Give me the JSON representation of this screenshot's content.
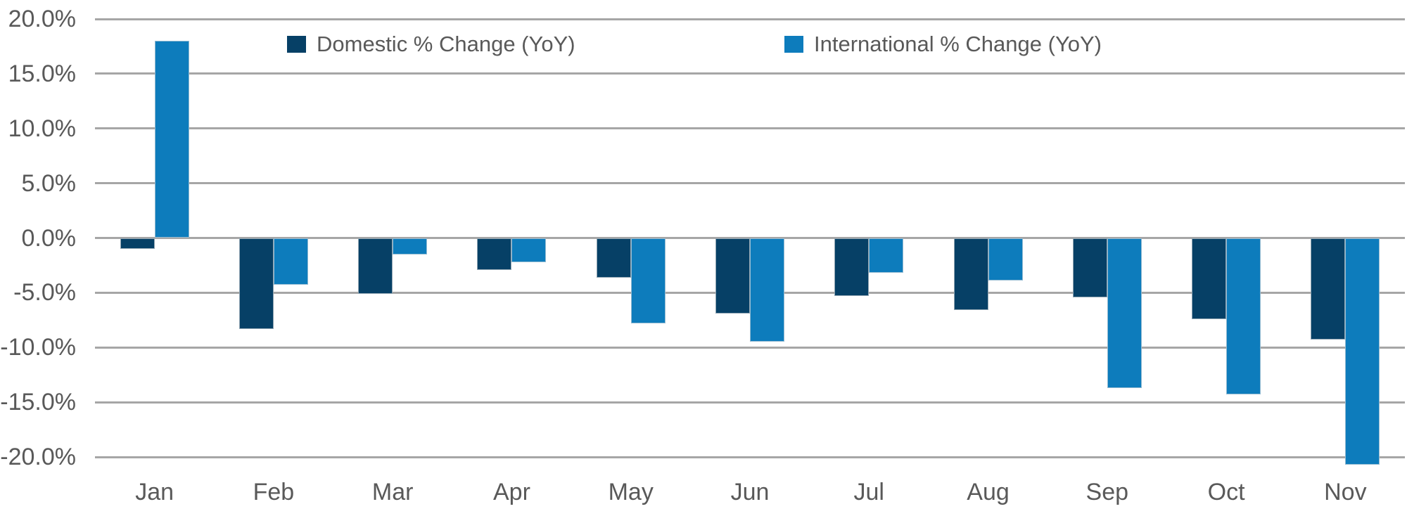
{
  "chart_data": {
    "type": "bar",
    "title": "",
    "categories": [
      "Jan",
      "Feb",
      "Mar",
      "Apr",
      "May",
      "Jun",
      "Jul",
      "Aug",
      "Sep",
      "Oct",
      "Nov"
    ],
    "series": [
      {
        "name": "Domestic % Change (YoY)",
        "color": "#064066",
        "values": [
          -1.0,
          -8.3,
          -5.1,
          -2.9,
          -3.6,
          -6.9,
          -5.3,
          -6.6,
          -5.4,
          -7.4,
          -9.3
        ]
      },
      {
        "name": "International % Change (YoY)",
        "color": "#0d7cbc",
        "values": [
          18.0,
          -4.3,
          -1.5,
          -2.2,
          -7.8,
          -9.5,
          -3.2,
          -3.9,
          -13.7,
          -14.3,
          -20.7
        ]
      }
    ],
    "y_axis": {
      "tick_values": [
        20,
        15,
        10,
        5,
        0,
        -5,
        -10,
        -15,
        -20
      ],
      "tick_labels": [
        "20.0%",
        "15.0%",
        "10.0%",
        "5.0%",
        "0.0%",
        "-5.0%",
        "-10.0%",
        "-15.0%",
        "-20.0%"
      ],
      "ylim": [
        -20,
        20
      ],
      "grid": true
    },
    "legend_position": "top-inside"
  },
  "colors": {
    "grid": "#a6a6a6",
    "text": "#595959",
    "background": "#ffffff",
    "domestic": "#064066",
    "international": "#0d7cbc"
  }
}
